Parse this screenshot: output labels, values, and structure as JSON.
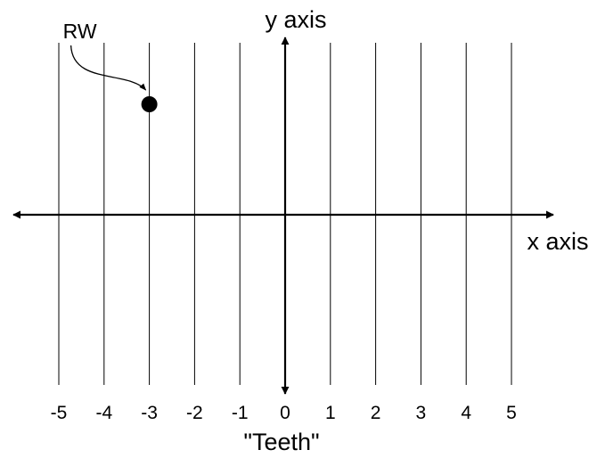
{
  "chart_data": {
    "type": "scatter",
    "xlabel": "x axis",
    "ylabel": "y axis",
    "x_caption": "\"Teeth\"",
    "x_ticks": [
      -5,
      -4,
      -3,
      -2,
      -1,
      0,
      1,
      2,
      3,
      4,
      5
    ],
    "points": [
      {
        "x": -3,
        "label": "RW"
      }
    ],
    "grid": "vertical",
    "colors": {
      "ink": "#000000",
      "background": "#ffffff"
    }
  }
}
